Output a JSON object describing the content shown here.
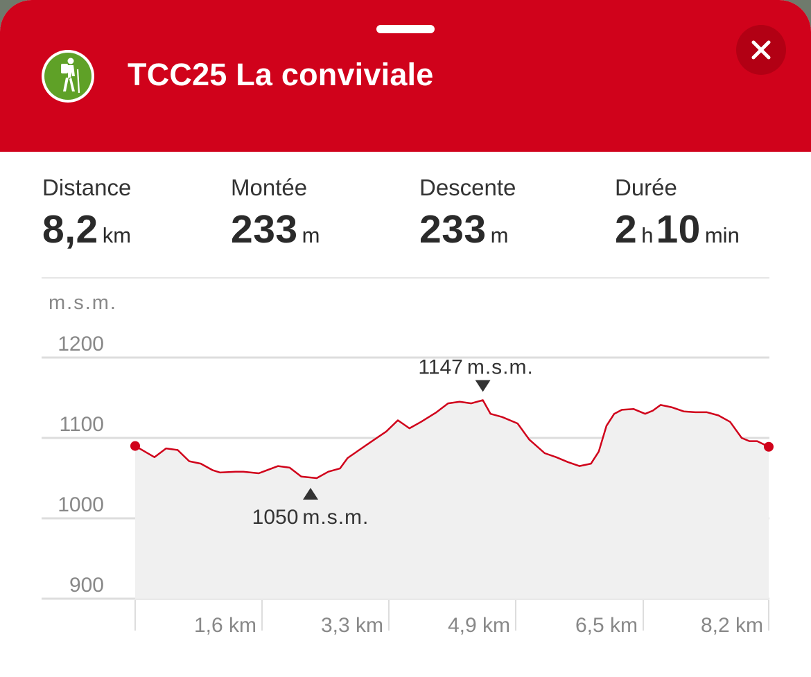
{
  "header": {
    "title": "TCC25 La conviviale",
    "icon": "hiker-icon",
    "close_icon": "close-icon",
    "accent_color": "#d0021b",
    "icon_color": "#5fa127"
  },
  "stats": [
    {
      "label": "Distance",
      "parts": [
        {
          "v": "8,2",
          "u": "km"
        }
      ]
    },
    {
      "label": "Montée",
      "parts": [
        {
          "v": "233",
          "u": "m"
        }
      ]
    },
    {
      "label": "Descente",
      "parts": [
        {
          "v": "233",
          "u": "m"
        }
      ]
    },
    {
      "label": "Durée",
      "parts": [
        {
          "v": "2",
          "u": "h"
        },
        {
          "v": "10",
          "u": "min"
        }
      ]
    }
  ],
  "chart_data": {
    "type": "area",
    "ylabel": "m.s.m.",
    "ylim": [
      900,
      1200
    ],
    "xlim": [
      0,
      8.2
    ],
    "y_ticks": [
      "1200",
      "1100",
      "1000",
      "900"
    ],
    "x_ticks": [
      "1,6 km",
      "3,3 km",
      "4,9 km",
      "6,5 km",
      "8,2 km"
    ],
    "line_color": "#d0021b",
    "fill_color": "#f0f0f0",
    "grid": true,
    "annotations": {
      "max": {
        "value": "1147",
        "unit": "m.s.m.",
        "x": 4.5,
        "y": 1147
      },
      "min": {
        "value": "1050",
        "unit": "m.s.m.",
        "x": 2.27,
        "y": 1050
      }
    },
    "series": [
      {
        "x": [
          0,
          0.25,
          0.4,
          0.55,
          0.7,
          0.85,
          1.0,
          1.1,
          1.3,
          1.4,
          1.6,
          1.85,
          2.0,
          2.15,
          2.35,
          2.5,
          2.65,
          2.75,
          2.9,
          3.05,
          3.25,
          3.4,
          3.55,
          3.7,
          3.9,
          4.05,
          4.2,
          4.35,
          4.5,
          4.6,
          4.75,
          4.95,
          5.1,
          5.3,
          5.45,
          5.6,
          5.75,
          5.9,
          6.0,
          6.1,
          6.2,
          6.3,
          6.45,
          6.6,
          6.7,
          6.8,
          6.95,
          7.1,
          7.25,
          7.4,
          7.55,
          7.7,
          7.85,
          7.95,
          8.05,
          8.2
        ],
        "y": [
          1090,
          1076,
          1087,
          1085,
          1071,
          1068,
          1060,
          1057,
          1058,
          1058,
          1056,
          1065,
          1063,
          1052,
          1050,
          1058,
          1062,
          1075,
          1085,
          1095,
          1108,
          1122,
          1112,
          1120,
          1132,
          1143,
          1145,
          1143,
          1147,
          1130,
          1126,
          1118,
          1098,
          1081,
          1076,
          1070,
          1065,
          1068,
          1083,
          1115,
          1130,
          1135,
          1136,
          1130,
          1134,
          1141,
          1138,
          1133,
          1132,
          1132,
          1128,
          1120,
          1100,
          1096,
          1096,
          1089
        ]
      }
    ]
  }
}
